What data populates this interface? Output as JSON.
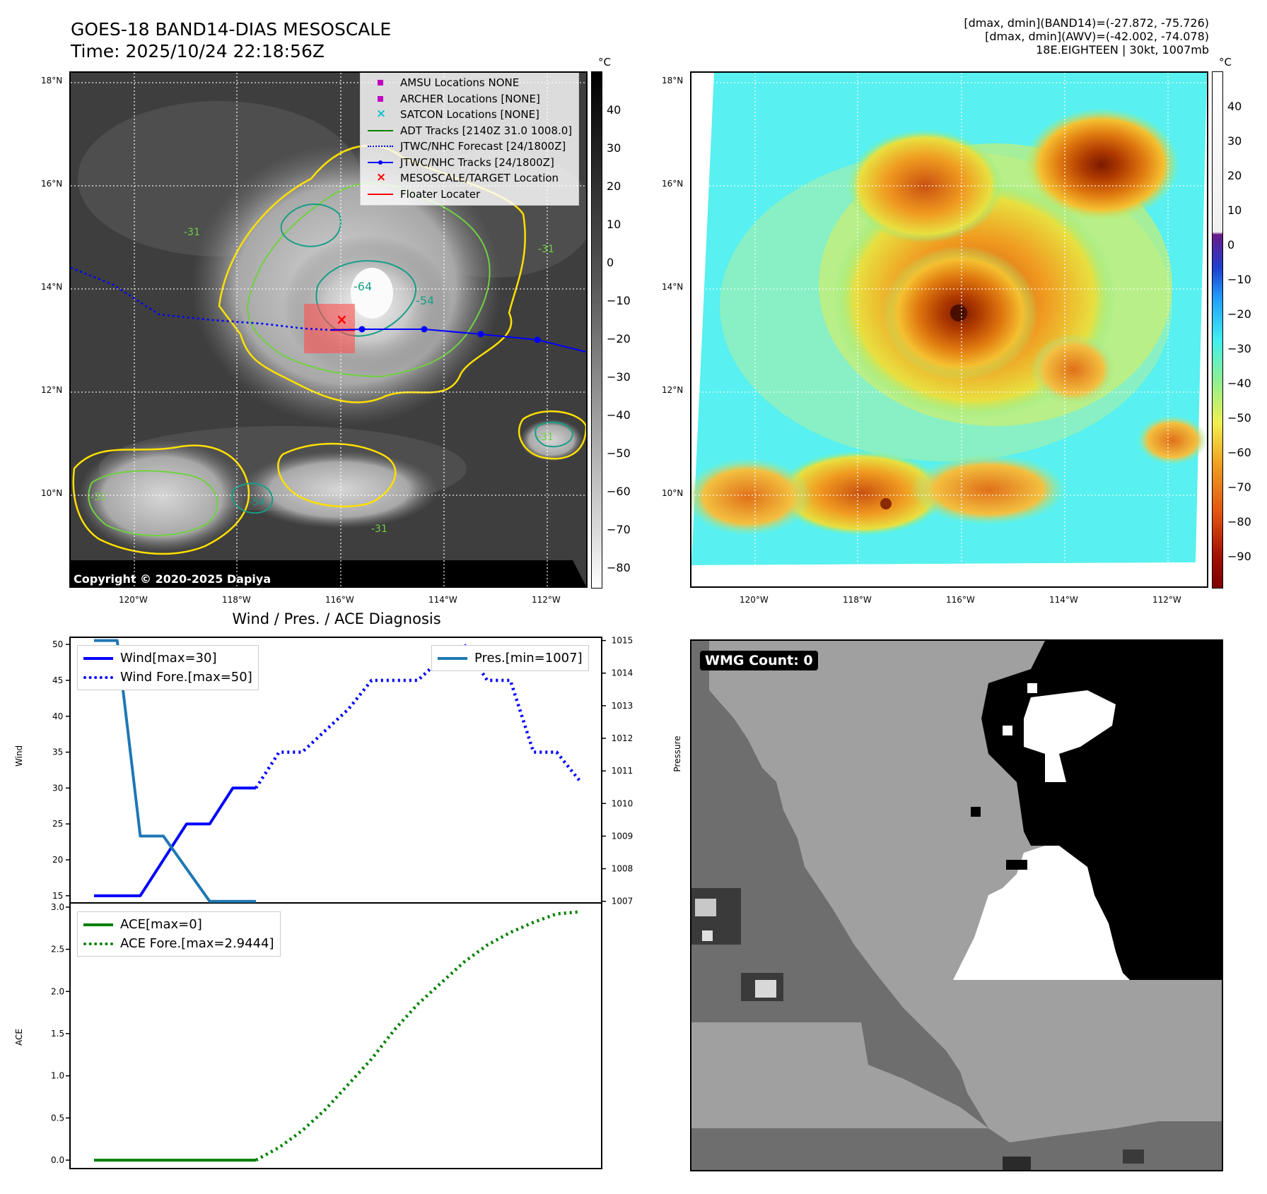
{
  "header": {
    "title_line1": "GOES-18 BAND14-DIAS MESOSCALE",
    "title_line2": "Time: 2025/10/24 22:18:56Z",
    "stats_line1": "[dmax, dmin](BAND14)=(-27.872, -75.726)",
    "stats_line2": "[dmax, dmin](AWV)=(-42.002, -74.078)",
    "stats_line3": "18E.EIGHTEEN | 30kt, 1007mb"
  },
  "map": {
    "lat_labels": [
      "18°N",
      "16°N",
      "14°N",
      "12°N",
      "10°N"
    ],
    "lon_labels": [
      "120°W",
      "118°W",
      "116°W",
      "114°W",
      "112°W"
    ],
    "copyright": "Copyright © 2020-2025 Dapiya",
    "legend": [
      {
        "label": "AMSU Locations NONE",
        "icon": "square-marker",
        "color": "#c000c0"
      },
      {
        "label": "ARCHER Locations [NONE]",
        "icon": "square-marker",
        "color": "#c000c0"
      },
      {
        "label": "SATCON Locations [NONE]",
        "icon": "x-marker",
        "color": "#17becf"
      },
      {
        "label": "ADT Tracks [2140Z 31.0 1008.0]",
        "icon": "solid-line",
        "color": "#008000"
      },
      {
        "label": "JTWC/NHC Forecast [24/1800Z]",
        "icon": "dotted-line",
        "color": "#0000ff"
      },
      {
        "label": "JTWC/NHC Tracks [24/1800Z]",
        "icon": "line-dot",
        "color": "#0000ff"
      },
      {
        "label": "MESOSCALE/TARGET Location",
        "icon": "x-marker",
        "color": "#ff0000"
      },
      {
        "label": "Floater Locater",
        "icon": "solid-line",
        "color": "#ff0000"
      }
    ],
    "contour_labels": [
      "-64",
      "-54",
      "-31",
      "-31",
      "-31",
      "-54",
      "-31",
      "-31"
    ],
    "colorbar_gray": {
      "unit": "°C",
      "ticks": [
        "40",
        "30",
        "20",
        "10",
        "0",
        "−10",
        "−20",
        "−30",
        "−40",
        "−50",
        "−60",
        "−70",
        "−80"
      ]
    },
    "colorbar_jet": {
      "unit": "°C",
      "ticks": [
        "40",
        "30",
        "20",
        "10",
        "0",
        "−10",
        "−20",
        "−30",
        "−40",
        "−50",
        "−60",
        "−70",
        "−80",
        "−90"
      ]
    }
  },
  "diag": {
    "title": "Wind / Pres. / ACE Diagnosis",
    "wind_ylabel": "Wind",
    "pres_ylabel": "Pressure",
    "ace_ylabel": "ACE",
    "legend_wind": "Wind[max=30]",
    "legend_wind_fore": "Wind Fore.[max=50]",
    "legend_pres": "Pres.[min=1007]",
    "legend_ace": "ACE[max=0]",
    "legend_ace_fore": "ACE Fore.[max=2.9444]",
    "wind_ticks": [
      "50",
      "45",
      "40",
      "35",
      "30",
      "25",
      "20",
      "15"
    ],
    "pres_ticks": [
      "1015",
      "1014",
      "1013",
      "1012",
      "1011",
      "1010",
      "1009",
      "1008",
      "1007"
    ],
    "ace_ticks": [
      "3.0",
      "2.5",
      "2.0",
      "1.5",
      "1.0",
      "0.5",
      "0.0"
    ]
  },
  "chart_data": [
    {
      "type": "line",
      "title": "Wind / Pres. / ACE Diagnosis",
      "ylabel": "Wind",
      "ylim": [
        14,
        51
      ],
      "y2label": "Pressure",
      "y2lim": [
        1006.95,
        1015.1
      ],
      "x_index": [
        0,
        1,
        2,
        3,
        4,
        5,
        6,
        7,
        8,
        9,
        10,
        11,
        12,
        13,
        14,
        15,
        16,
        17,
        18,
        19,
        20,
        21
      ],
      "series": [
        {
          "name": "Wind[max=30]",
          "axis": "left",
          "color": "#0000ff",
          "style": "solid",
          "x": [
            0,
            1,
            2,
            3,
            4,
            5,
            6,
            7
          ],
          "values": [
            15,
            15,
            15,
            20,
            25,
            25,
            30,
            30
          ]
        },
        {
          "name": "Wind Fore.[max=50]",
          "axis": "left",
          "color": "#0000ff",
          "style": "dotted",
          "x": [
            7,
            8,
            9,
            10,
            11,
            12,
            13,
            14,
            15,
            16,
            17,
            18,
            19,
            20,
            21
          ],
          "values": [
            30,
            35,
            35,
            38,
            41,
            45,
            45,
            45,
            48,
            50,
            45,
            45,
            35,
            35,
            31
          ]
        },
        {
          "name": "Pres.[min=1007]",
          "axis": "right",
          "color": "#1f77b4",
          "style": "solid",
          "x": [
            0,
            1,
            2,
            3,
            4,
            5,
            6,
            7
          ],
          "values": [
            1015,
            1015,
            1009,
            1009,
            1008,
            1007,
            1007,
            1007
          ]
        }
      ]
    },
    {
      "type": "line",
      "ylabel": "ACE",
      "ylim": [
        -0.1,
        3.05
      ],
      "x_index": [
        0,
        1,
        2,
        3,
        4,
        5,
        6,
        7,
        8,
        9,
        10,
        11,
        12,
        13,
        14,
        15,
        16,
        17,
        18,
        19,
        20,
        21
      ],
      "series": [
        {
          "name": "ACE[max=0]",
          "color": "#008000",
          "style": "solid",
          "x": [
            0,
            1,
            2,
            3,
            4,
            5,
            6,
            7
          ],
          "values": [
            0,
            0,
            0,
            0,
            0,
            0,
            0,
            0
          ]
        },
        {
          "name": "ACE Fore.[max=2.9444]",
          "color": "#008000",
          "style": "dotted",
          "x": [
            7,
            8,
            9,
            10,
            11,
            12,
            13,
            14,
            15,
            16,
            17,
            18,
            19,
            20,
            21
          ],
          "values": [
            0,
            0.15,
            0.35,
            0.6,
            0.9,
            1.2,
            1.55,
            1.85,
            2.1,
            2.35,
            2.55,
            2.7,
            2.82,
            2.92,
            2.9444
          ]
        }
      ]
    }
  ],
  "wmg": {
    "label": "WMG Count: 0"
  }
}
